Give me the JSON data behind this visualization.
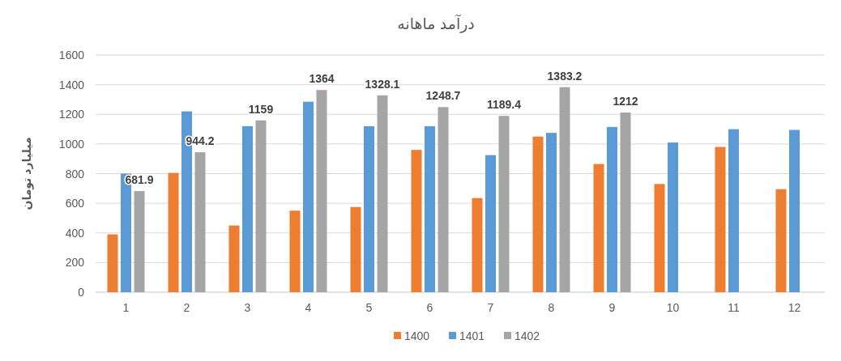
{
  "chart_data": {
    "type": "bar",
    "title": "درآمد ماهانه",
    "ylabel": "میلیارد تومان",
    "categories": [
      "1",
      "2",
      "3",
      "4",
      "5",
      "6",
      "7",
      "8",
      "9",
      "10",
      "11",
      "12"
    ],
    "series": [
      {
        "name": "1400",
        "color": "#ed7d31",
        "values": [
          390,
          805,
          450,
          550,
          575,
          960,
          635,
          1050,
          865,
          730,
          980,
          695
        ]
      },
      {
        "name": "1401",
        "color": "#5b9bd5",
        "values": [
          800,
          1220,
          1120,
          1285,
          1120,
          1120,
          925,
          1075,
          1115,
          1010,
          1100,
          1095
        ]
      },
      {
        "name": "1402",
        "color": "#a5a5a5",
        "values": [
          681.9,
          944.2,
          1159,
          1364,
          1328.1,
          1248.7,
          1189.4,
          1383.2,
          1212,
          null,
          null,
          null
        ],
        "value_labels": [
          "681.9",
          "944.2",
          "1159",
          "1364",
          "1328.1",
          "1248.7",
          "1189.4",
          "1383.2",
          "1212",
          null,
          null,
          null
        ]
      }
    ],
    "ylim": [
      0,
      1600
    ],
    "yticks": [
      0,
      200,
      400,
      600,
      800,
      1000,
      1200,
      1400,
      1600
    ],
    "grid": "y",
    "legend": "bottom"
  }
}
